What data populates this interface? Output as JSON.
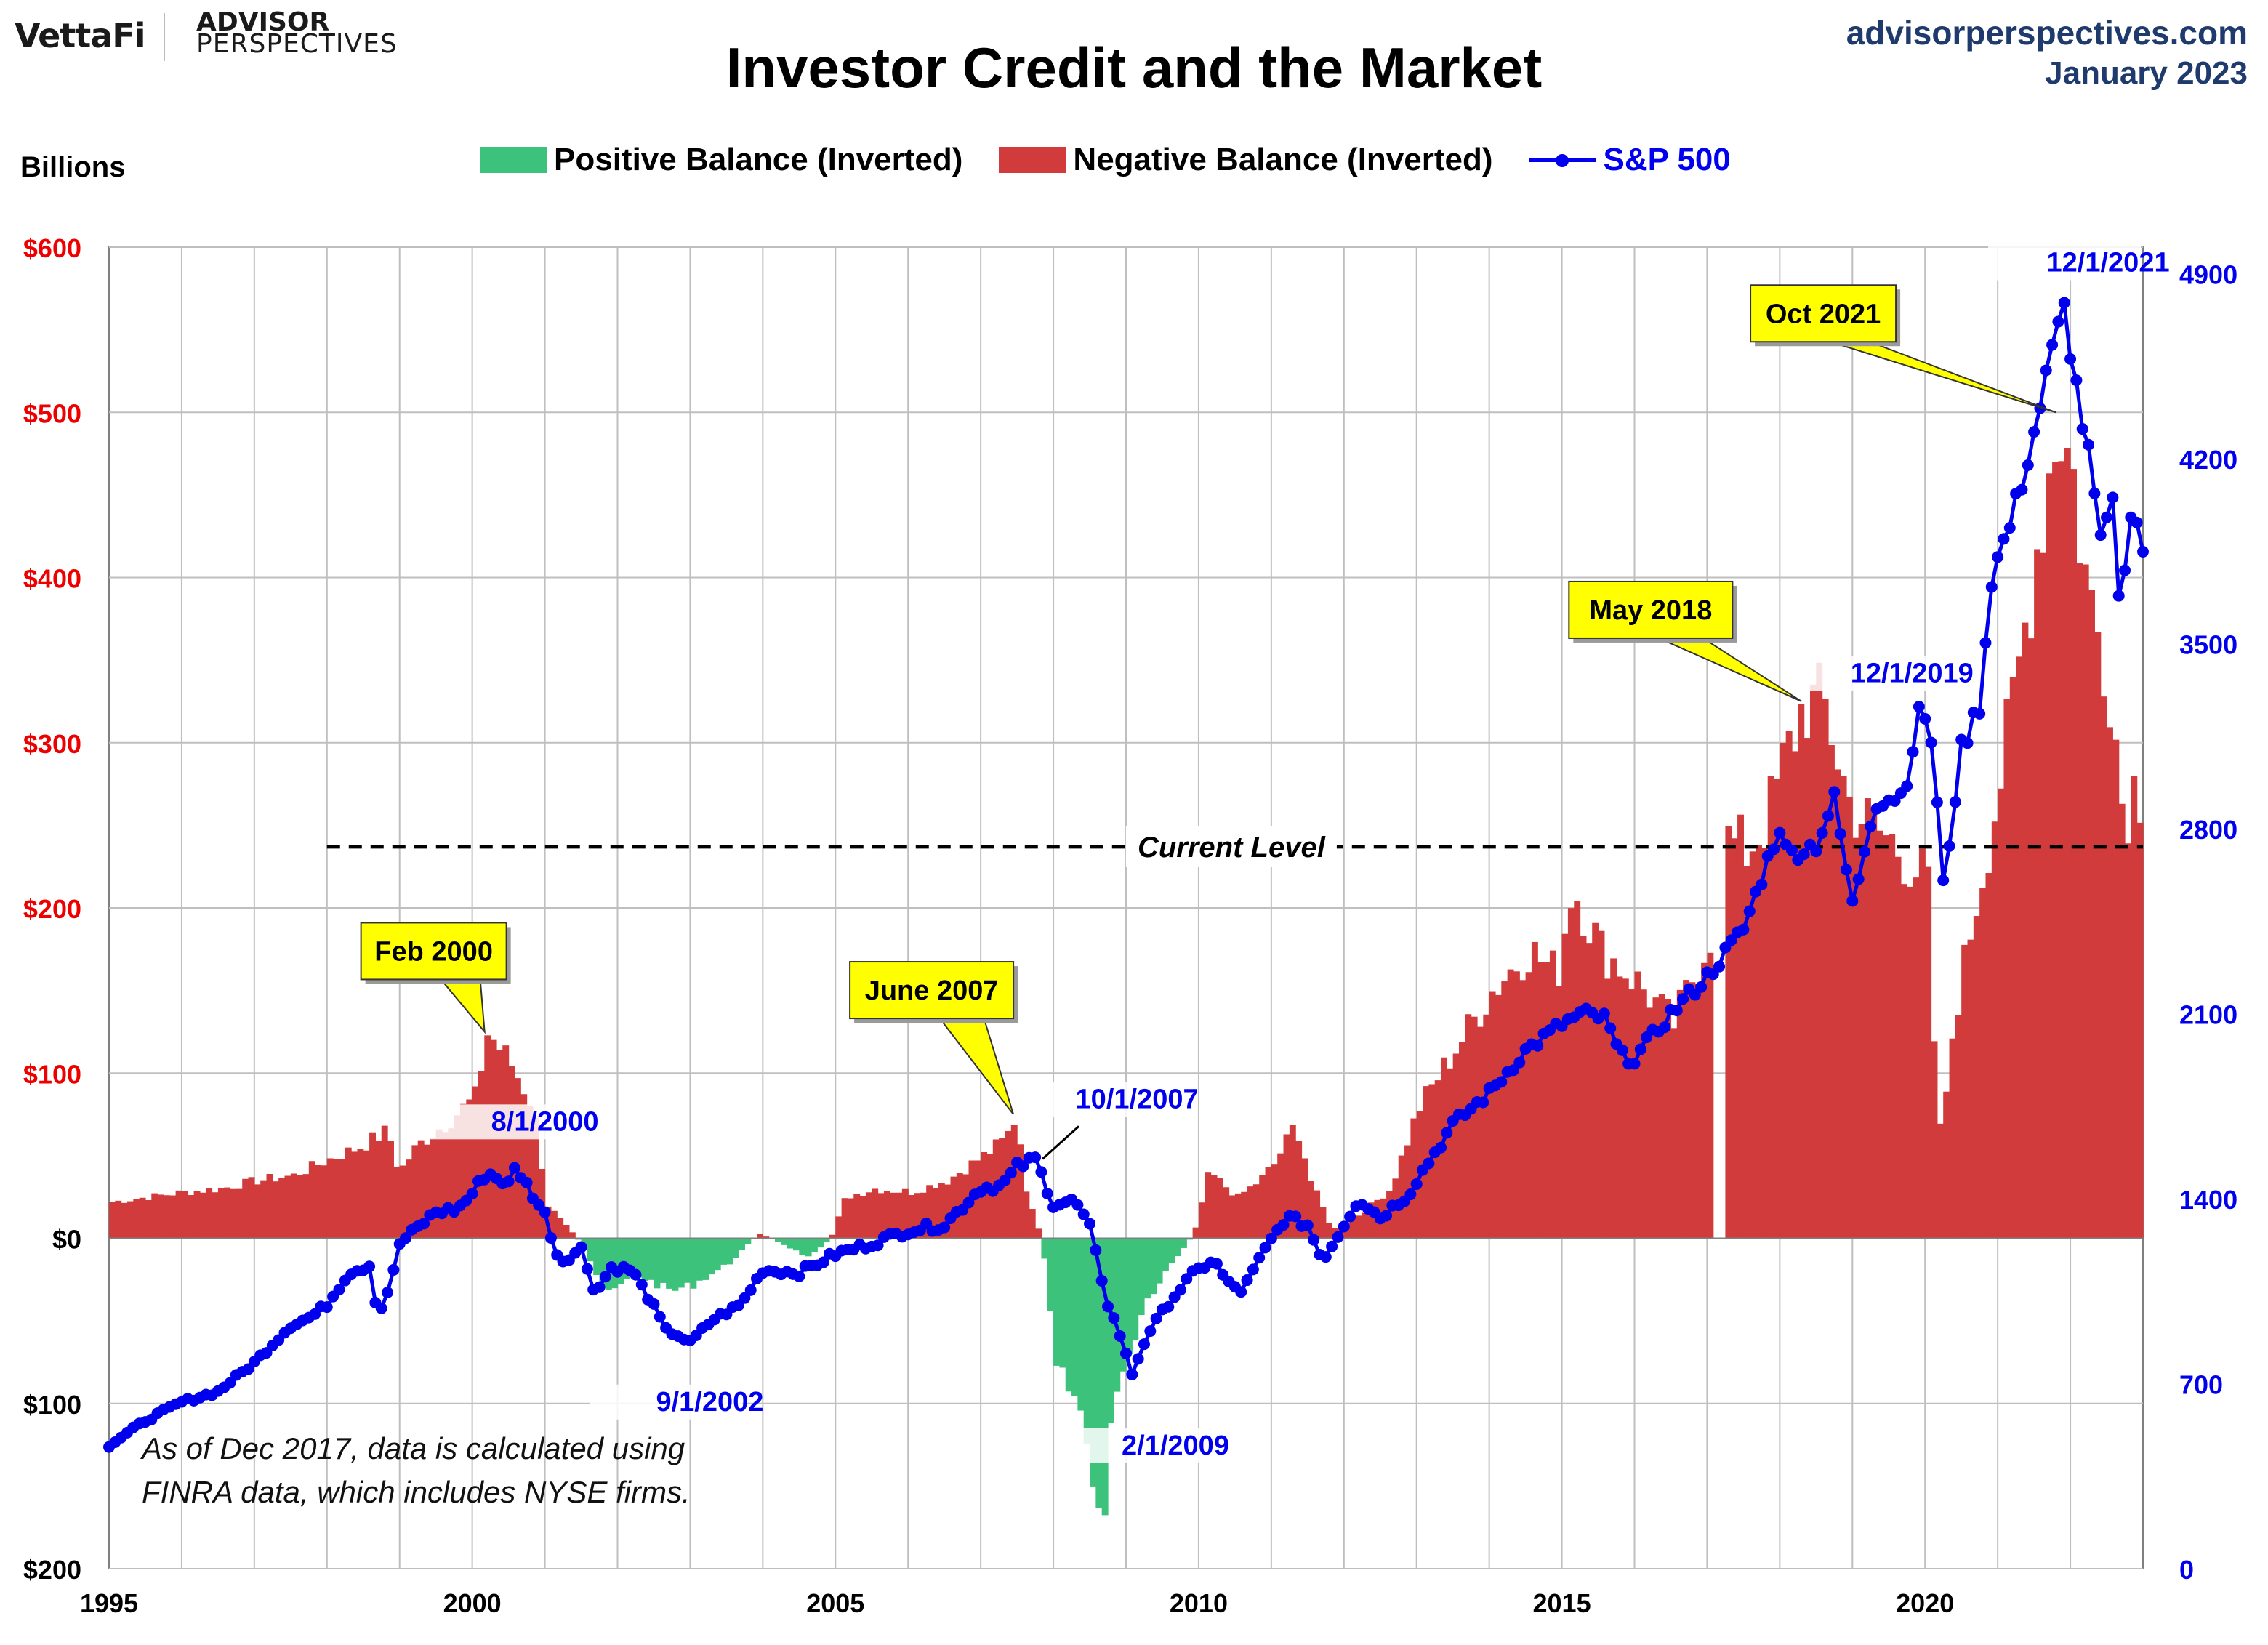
{
  "header": {
    "brand_vettafi": "VettaFi",
    "brand_advisor": "ADVISOR",
    "brand_perspectives": "PERSPECTIVES",
    "site_url": "advisorperspectives.com",
    "date": "January 2023",
    "title": "Investor Credit and the Market",
    "units": "Billions"
  },
  "legend": [
    {
      "label": "Positive Balance (Inverted)",
      "color": "#3cc27a"
    },
    {
      "label": "Negative Balance (Inverted)",
      "color": "#d13b3b"
    },
    {
      "label": "S&P 500",
      "color": "#0000ee"
    }
  ],
  "chart_data": {
    "type": "bar+line",
    "title": "Investor Credit and the Market",
    "x_range": [
      1995,
      2023
    ],
    "x_ticks": [
      "1995",
      "2000",
      "2005",
      "2010",
      "2015",
      "2020"
    ],
    "x_tick_values": [
      1995,
      2000,
      2005,
      2010,
      2015,
      2020
    ],
    "left_axis": {
      "label": "Billions",
      "range": [
        -200,
        600
      ],
      "ticks": [
        600,
        500,
        400,
        300,
        200,
        100,
        0,
        -100,
        -200
      ],
      "tick_labels": [
        "$600",
        "$500",
        "$400",
        "$300",
        "$200",
        "$100",
        "$0",
        "$100",
        "$200"
      ],
      "color": "#ee0000"
    },
    "right_axis": {
      "range": [
        0,
        5000
      ],
      "ticks": [
        4900,
        4200,
        3500,
        2800,
        2100,
        1400,
        700,
        0
      ],
      "tick_labels": [
        "4900",
        "4200",
        "3500",
        "2800",
        "2100",
        "1400",
        "700",
        "0"
      ],
      "color": "#0000ee"
    },
    "balance_series": {
      "name": "Investor Credit Balance (Inverted), $B",
      "anchors": [
        [
          1995.0,
          22
        ],
        [
          1995.5,
          25
        ],
        [
          1996.0,
          28
        ],
        [
          1996.5,
          30
        ],
        [
          1997.0,
          35
        ],
        [
          1997.5,
          38
        ],
        [
          1998.0,
          48
        ],
        [
          1998.4,
          55
        ],
        [
          1998.8,
          65
        ],
        [
          1998.95,
          40
        ],
        [
          1999.2,
          56
        ],
        [
          1999.6,
          70
        ],
        [
          2000.0,
          85
        ],
        [
          2000.17,
          125
        ],
        [
          2000.5,
          105
        ],
        [
          2000.8,
          80
        ],
        [
          2001.0,
          20
        ],
        [
          2001.5,
          -5
        ],
        [
          2001.8,
          -35
        ],
        [
          2002.2,
          -22
        ],
        [
          2002.7,
          -32
        ],
        [
          2003.0,
          -28
        ],
        [
          2003.5,
          -15
        ],
        [
          2003.9,
          3
        ],
        [
          2004.3,
          -5
        ],
        [
          2004.6,
          -12
        ],
        [
          2004.9,
          0
        ],
        [
          2005.1,
          25
        ],
        [
          2005.5,
          30
        ],
        [
          2006.0,
          28
        ],
        [
          2006.5,
          35
        ],
        [
          2007.0,
          50
        ],
        [
          2007.3,
          60
        ],
        [
          2007.45,
          75
        ],
        [
          2007.6,
          25
        ],
        [
          2007.8,
          0
        ],
        [
          2008.0,
          -80
        ],
        [
          2008.3,
          -100
        ],
        [
          2008.5,
          -140
        ],
        [
          2008.65,
          -180
        ],
        [
          2008.8,
          -90
        ],
        [
          2009.0,
          -70
        ],
        [
          2009.2,
          -40
        ],
        [
          2009.5,
          -20
        ],
        [
          2009.9,
          3
        ],
        [
          2010.1,
          40
        ],
        [
          2010.5,
          25
        ],
        [
          2010.8,
          35
        ],
        [
          2011.0,
          45
        ],
        [
          2011.3,
          70
        ],
        [
          2011.5,
          35
        ],
        [
          2011.8,
          5
        ],
        [
          2012.2,
          15
        ],
        [
          2012.6,
          30
        ],
        [
          2013.0,
          80
        ],
        [
          2013.5,
          115
        ],
        [
          2014.0,
          150
        ],
        [
          2014.5,
          175
        ],
        [
          2014.9,
          160
        ],
        [
          2015.1,
          215
        ],
        [
          2015.5,
          175
        ],
        [
          2016.0,
          155
        ],
        [
          2016.5,
          130
        ],
        [
          2017.0,
          185
        ],
        [
          2017.08,
          0
        ],
        [
          2017.2,
          0
        ],
        [
          2017.25,
          240
        ],
        [
          2017.5,
          235
        ],
        [
          2017.8,
          255
        ],
        [
          2018.0,
          285
        ],
        [
          2018.3,
          325
        ],
        [
          2018.6,
          320
        ],
        [
          2018.9,
          265
        ],
        [
          2019.2,
          250
        ],
        [
          2019.5,
          240
        ],
        [
          2019.8,
          225
        ],
        [
          2020.0,
          215
        ],
        [
          2020.1,
          90
        ],
        [
          2020.2,
          60
        ],
        [
          2020.35,
          130
        ],
        [
          2020.6,
          190
        ],
        [
          2020.9,
          255
        ],
        [
          2021.2,
          330
        ],
        [
          2021.5,
          420
        ],
        [
          2021.8,
          500
        ],
        [
          2022.0,
          460
        ],
        [
          2022.2,
          390
        ],
        [
          2022.5,
          340
        ],
        [
          2022.7,
          250
        ],
        [
          2022.8,
          275
        ],
        [
          2022.95,
          270
        ],
        [
          2023.0,
          235
        ]
      ]
    },
    "sp500_series": {
      "name": "S&P 500",
      "anchors": [
        [
          1995.0,
          465
        ],
        [
          1995.5,
          560
        ],
        [
          1996.0,
          630
        ],
        [
          1996.5,
          670
        ],
        [
          1997.0,
          780
        ],
        [
          1997.5,
          920
        ],
        [
          1997.8,
          955
        ],
        [
          1998.0,
          1000
        ],
        [
          1998.3,
          1120
        ],
        [
          1998.6,
          1150
        ],
        [
          1998.7,
          950
        ],
        [
          1998.9,
          1100
        ],
        [
          1999.0,
          1230
        ],
        [
          1999.5,
          1350
        ],
        [
          1999.8,
          1360
        ],
        [
          2000.0,
          1420
        ],
        [
          2000.2,
          1500
        ],
        [
          2000.5,
          1455
        ],
        [
          2000.6,
          1520
        ],
        [
          2000.8,
          1430
        ],
        [
          2001.0,
          1340
        ],
        [
          2001.2,
          1160
        ],
        [
          2001.5,
          1210
        ],
        [
          2001.7,
          1040
        ],
        [
          2001.9,
          1140
        ],
        [
          2002.2,
          1130
        ],
        [
          2002.5,
          990
        ],
        [
          2002.67,
          900
        ],
        [
          2002.8,
          890
        ],
        [
          2003.0,
          855
        ],
        [
          2003.3,
          940
        ],
        [
          2003.7,
          1000
        ],
        [
          2004.0,
          1130
        ],
        [
          2004.5,
          1120
        ],
        [
          2005.0,
          1190
        ],
        [
          2005.5,
          1230
        ],
        [
          2006.0,
          1280
        ],
        [
          2006.5,
          1300
        ],
        [
          2007.0,
          1440
        ],
        [
          2007.3,
          1450
        ],
        [
          2007.5,
          1520
        ],
        [
          2007.75,
          1550
        ],
        [
          2008.0,
          1380
        ],
        [
          2008.3,
          1390
        ],
        [
          2008.5,
          1290
        ],
        [
          2008.75,
          1000
        ],
        [
          2008.9,
          900
        ],
        [
          2009.08,
          735
        ],
        [
          2009.3,
          890
        ],
        [
          2009.6,
          1010
        ],
        [
          2009.9,
          1110
        ],
        [
          2010.2,
          1170
        ],
        [
          2010.4,
          1080
        ],
        [
          2010.6,
          1050
        ],
        [
          2010.9,
          1200
        ],
        [
          2011.2,
          1330
        ],
        [
          2011.5,
          1300
        ],
        [
          2011.7,
          1170
        ],
        [
          2011.85,
          1230
        ],
        [
          2012.2,
          1400
        ],
        [
          2012.5,
          1330
        ],
        [
          2012.9,
          1420
        ],
        [
          2013.0,
          1470
        ],
        [
          2013.5,
          1680
        ],
        [
          2014.0,
          1800
        ],
        [
          2014.5,
          1960
        ],
        [
          2015.0,
          2060
        ],
        [
          2015.3,
          2100
        ],
        [
          2015.6,
          2080
        ],
        [
          2015.8,
          1940
        ],
        [
          2016.0,
          1930
        ],
        [
          2016.5,
          2100
        ],
        [
          2017.0,
          2240
        ],
        [
          2017.5,
          2420
        ],
        [
          2018.0,
          2810
        ],
        [
          2018.1,
          2700
        ],
        [
          2018.5,
          2740
        ],
        [
          2018.75,
          2910
        ],
        [
          2019.0,
          2510
        ],
        [
          2019.3,
          2900
        ],
        [
          2019.7,
          2930
        ],
        [
          2019.92,
          3230
        ],
        [
          2020.05,
          3225
        ],
        [
          2020.15,
          2950
        ],
        [
          2020.25,
          2580
        ],
        [
          2020.5,
          3100
        ],
        [
          2020.75,
          3270
        ],
        [
          2020.92,
          3760
        ],
        [
          2021.2,
          3970
        ],
        [
          2021.5,
          4300
        ],
        [
          2021.75,
          4600
        ],
        [
          2021.92,
          4770
        ],
        [
          2022.1,
          4440
        ],
        [
          2022.3,
          4130
        ],
        [
          2022.45,
          3790
        ],
        [
          2022.55,
          4130
        ],
        [
          2022.7,
          3590
        ],
        [
          2022.85,
          4080
        ],
        [
          2023.0,
          3840
        ]
      ]
    },
    "reference_line": {
      "label": "Current Level",
      "value": 237,
      "x_start": 1998.0,
      "x_end": 2023.0
    },
    "annotations": {
      "callouts": [
        {
          "label": "Feb 2000",
          "x": 2000.17,
          "y": 125
        },
        {
          "label": "June 2007",
          "x": 2007.45,
          "y": 75
        },
        {
          "label": "May 2018",
          "x": 2018.3,
          "y": 325
        },
        {
          "label": "Oct 2021",
          "x": 2021.8,
          "y": 500
        }
      ],
      "sp_labels": [
        {
          "label": "8/1/2000",
          "x": 2000.6,
          "y": 1520
        },
        {
          "label": "9/1/2002",
          "x": 2002.67,
          "y": 900
        },
        {
          "label": "10/1/2007",
          "x": 2007.75,
          "y": 1550
        },
        {
          "label": "2/1/2009",
          "x": 2009.08,
          "y": 735
        },
        {
          "label": "12/1/2019",
          "x": 2019.92,
          "y": 3230
        },
        {
          "label": "12/1/2021",
          "x": 2021.92,
          "y": 4770
        }
      ],
      "note_line1": "As of Dec 2017, data is calculated using",
      "note_line2": "FINRA data, which includes NYSE firms."
    }
  }
}
